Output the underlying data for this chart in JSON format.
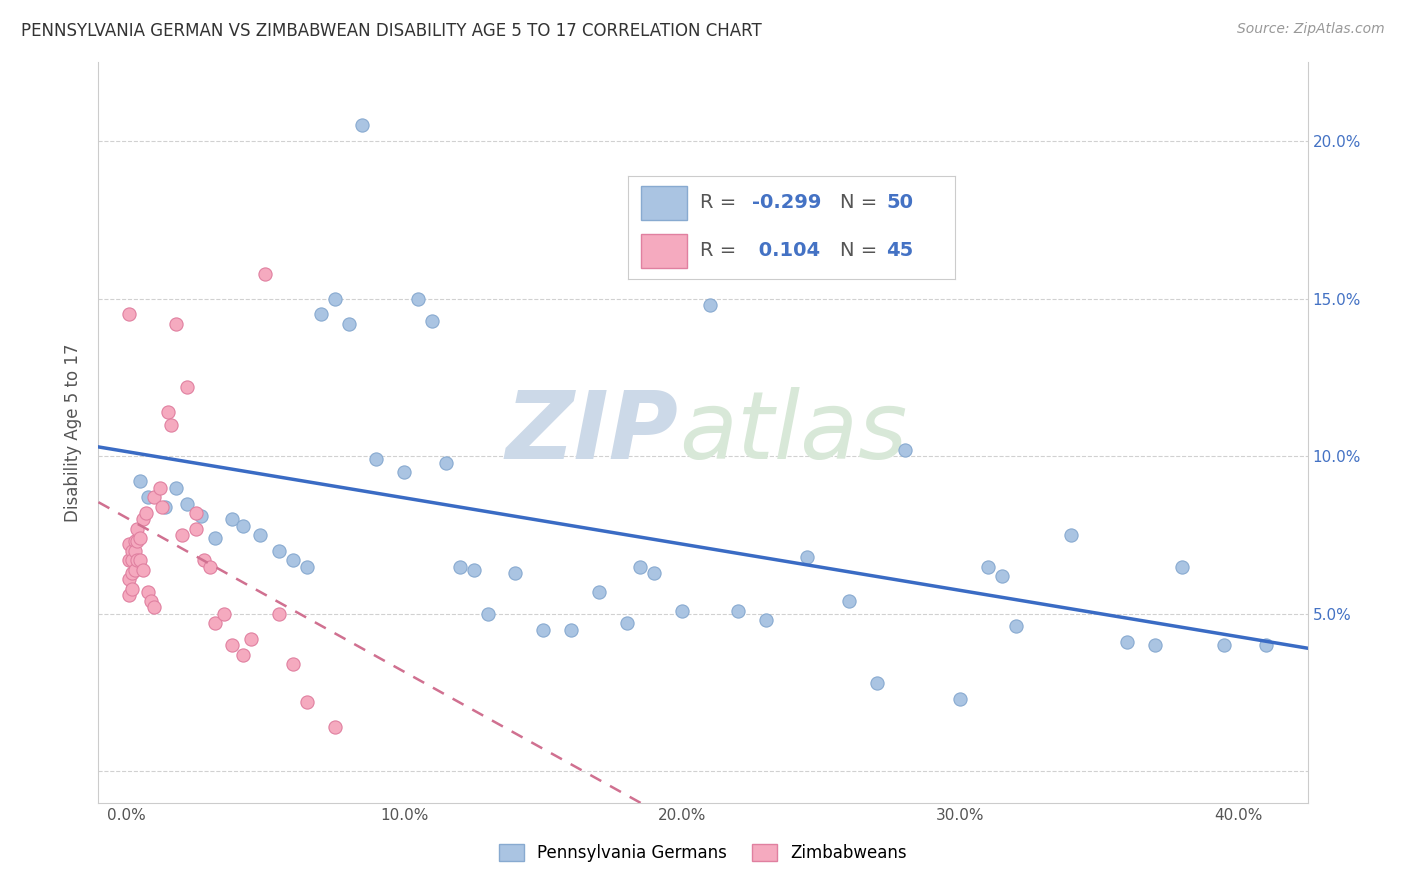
{
  "title": "PENNSYLVANIA GERMAN VS ZIMBABWEAN DISABILITY AGE 5 TO 17 CORRELATION CHART",
  "source": "Source: ZipAtlas.com",
  "ylabel": "Disability Age 5 to 17",
  "x_tick_labels": [
    "0.0%",
    "10.0%",
    "20.0%",
    "30.0%",
    "40.0%"
  ],
  "x_ticks": [
    0.0,
    0.1,
    0.2,
    0.3,
    0.4
  ],
  "y_tick_labels_right": [
    "5.0%",
    "10.0%",
    "15.0%",
    "20.0%"
  ],
  "y_ticks_right": [
    0.05,
    0.1,
    0.15,
    0.2
  ],
  "xlim": [
    -0.01,
    0.425
  ],
  "ylim": [
    -0.01,
    0.225
  ],
  "blue_color": "#aac4e2",
  "blue_edge_color": "#88aad0",
  "pink_color": "#f5aabf",
  "pink_edge_color": "#e080a0",
  "blue_line_color": "#3a6bc4",
  "pink_line_color": "#d07090",
  "legend_R_blue": "-0.299",
  "legend_N_blue": "50",
  "legend_R_pink": "0.104",
  "legend_N_pink": "45",
  "legend_text_color": "#4472C4",
  "legend_label_color": "#333333",
  "blue_scatter_x": [
    0.085,
    0.005,
    0.008,
    0.014,
    0.018,
    0.022,
    0.027,
    0.032,
    0.038,
    0.042,
    0.048,
    0.055,
    0.06,
    0.065,
    0.07,
    0.075,
    0.08,
    0.09,
    0.1,
    0.105,
    0.11,
    0.115,
    0.12,
    0.125,
    0.13,
    0.14,
    0.15,
    0.16,
    0.17,
    0.18,
    0.185,
    0.19,
    0.2,
    0.21,
    0.22,
    0.23,
    0.245,
    0.26,
    0.27,
    0.28,
    0.3,
    0.31,
    0.315,
    0.32,
    0.34,
    0.36,
    0.37,
    0.38,
    0.395,
    0.41
  ],
  "blue_scatter_y": [
    0.205,
    0.092,
    0.087,
    0.084,
    0.09,
    0.085,
    0.081,
    0.074,
    0.08,
    0.078,
    0.075,
    0.07,
    0.067,
    0.065,
    0.145,
    0.15,
    0.142,
    0.099,
    0.095,
    0.15,
    0.143,
    0.098,
    0.065,
    0.064,
    0.05,
    0.063,
    0.045,
    0.045,
    0.057,
    0.047,
    0.065,
    0.063,
    0.051,
    0.148,
    0.051,
    0.048,
    0.068,
    0.054,
    0.028,
    0.102,
    0.023,
    0.065,
    0.062,
    0.046,
    0.075,
    0.041,
    0.04,
    0.065,
    0.04,
    0.04
  ],
  "pink_scatter_x": [
    0.001,
    0.001,
    0.001,
    0.001,
    0.001,
    0.002,
    0.002,
    0.002,
    0.002,
    0.003,
    0.003,
    0.003,
    0.004,
    0.004,
    0.004,
    0.005,
    0.005,
    0.006,
    0.006,
    0.007,
    0.008,
    0.009,
    0.01,
    0.01,
    0.012,
    0.013,
    0.015,
    0.016,
    0.018,
    0.02,
    0.022,
    0.025,
    0.025,
    0.028,
    0.03,
    0.032,
    0.035,
    0.038,
    0.042,
    0.045,
    0.05,
    0.055,
    0.06,
    0.065,
    0.075
  ],
  "pink_scatter_y": [
    0.072,
    0.067,
    0.061,
    0.056,
    0.145,
    0.07,
    0.067,
    0.063,
    0.058,
    0.073,
    0.07,
    0.064,
    0.077,
    0.073,
    0.067,
    0.074,
    0.067,
    0.08,
    0.064,
    0.082,
    0.057,
    0.054,
    0.087,
    0.052,
    0.09,
    0.084,
    0.114,
    0.11,
    0.142,
    0.075,
    0.122,
    0.077,
    0.082,
    0.067,
    0.065,
    0.047,
    0.05,
    0.04,
    0.037,
    0.042,
    0.158,
    0.05,
    0.034,
    0.022,
    0.014
  ],
  "watermark_zip": "ZIP",
  "watermark_atlas": "atlas",
  "grid_color": "#cccccc",
  "bg_color": "#ffffff"
}
